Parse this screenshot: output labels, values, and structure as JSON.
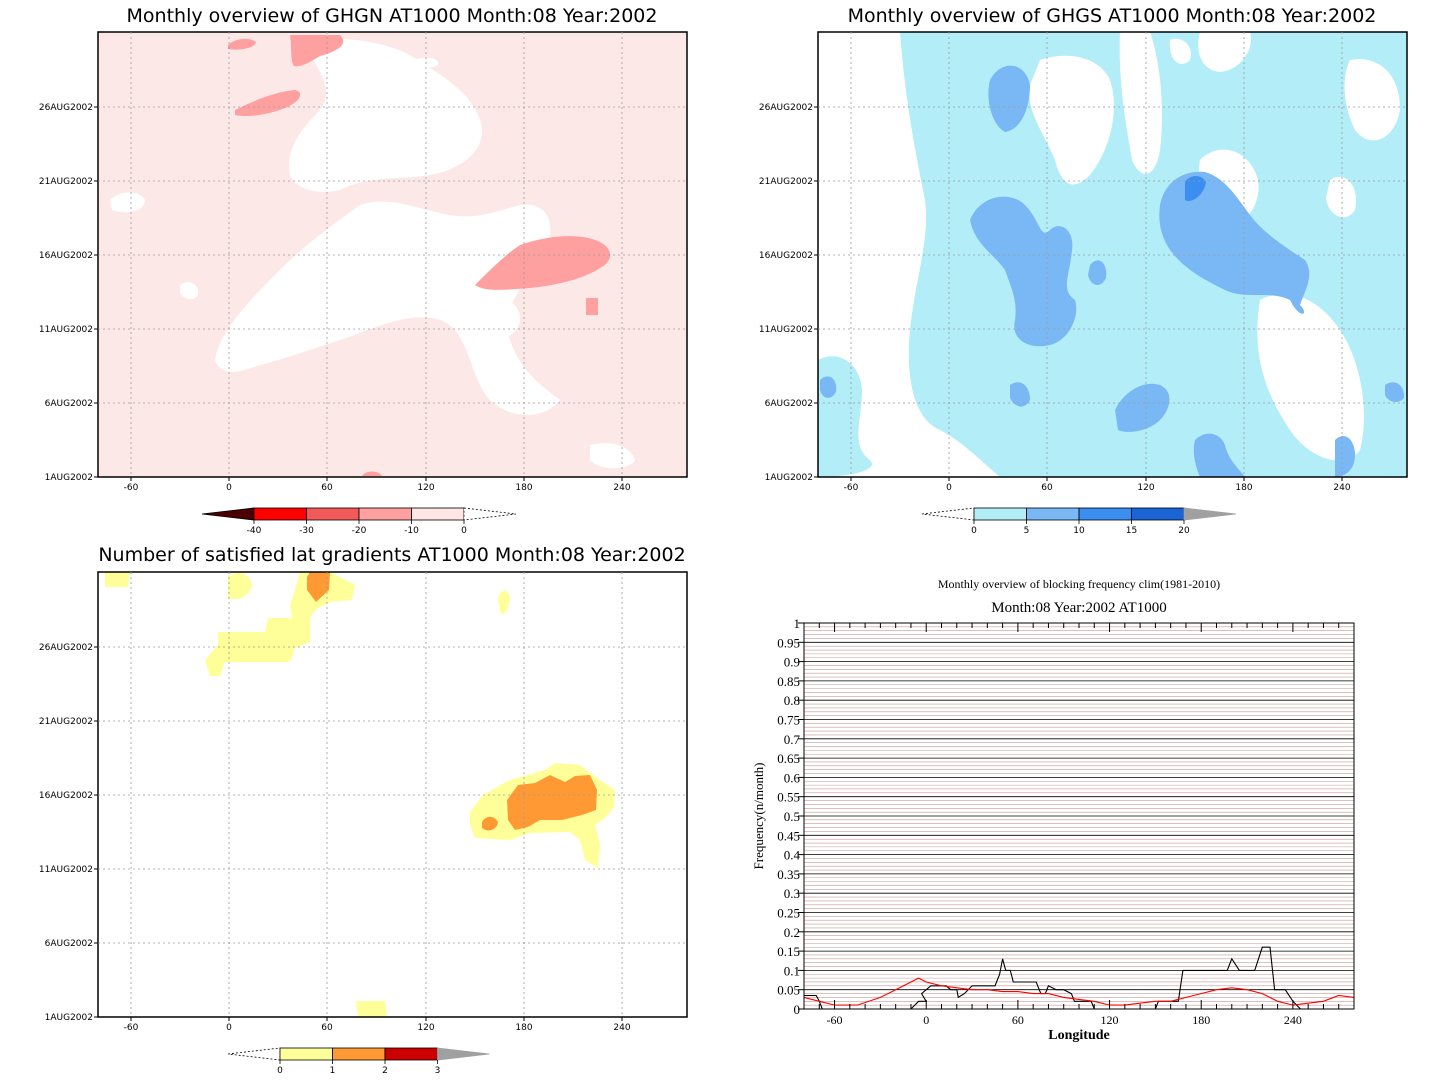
{
  "panels": {
    "ghgn": {
      "title": "Monthly overview of GHGN AT1000 Month:08 Year:2002",
      "x_ticks": [
        "-60",
        "0",
        "60",
        "120",
        "180",
        "240"
      ],
      "y_ticks": [
        "1AUG2002",
        "6AUG2002",
        "11AUG2002",
        "16AUG2002",
        "21AUG2002",
        "26AUG2002"
      ],
      "colorbar": {
        "labels": [
          "-40",
          "-30",
          "-20",
          "-10",
          "0"
        ],
        "colors": [
          "#4a0000",
          "#ff0000",
          "#f25a5a",
          "#ffa0a0",
          "#ffe6e6"
        ]
      },
      "colors": {
        "background": "#fde8e8",
        "light": "#ffffff",
        "strong": "#ffa0a0"
      }
    },
    "ghgs": {
      "title": "Monthly overview of GHGS AT1000 Month:08 Year:2002",
      "x_ticks": [
        "-60",
        "0",
        "60",
        "120",
        "180",
        "240"
      ],
      "y_ticks": [
        "1AUG2002",
        "6AUG2002",
        "11AUG2002",
        "16AUG2002",
        "21AUG2002",
        "26AUG2002"
      ],
      "colorbar": {
        "labels": [
          "0",
          "5",
          "10",
          "15",
          "20"
        ],
        "colors": [
          "#b3eef8",
          "#79b8f5",
          "#3a8ef0",
          "#1a64d8",
          "#a0a0a0"
        ]
      },
      "colors": {
        "background": "#ffffff",
        "level1": "#b3eef8",
        "level2": "#79b8f5",
        "level3": "#3a8ef0"
      }
    },
    "gradients": {
      "title": "Number of satisfied lat gradients AT1000 Month:08 Year:2002",
      "x_ticks": [
        "-60",
        "0",
        "60",
        "120",
        "180",
        "240"
      ],
      "y_ticks": [
        "1AUG2002",
        "6AUG2002",
        "11AUG2002",
        "16AUG2002",
        "21AUG2002",
        "26AUG2002"
      ],
      "colorbar": {
        "labels": [
          "0",
          "1",
          "2",
          "3"
        ],
        "colors": [
          "#ffff99",
          "#ff9933",
          "#cc0000",
          "#a0a0a0"
        ]
      },
      "colors": {
        "level1": "#ffff99",
        "level2": "#ff9933"
      }
    }
  },
  "chart_data": {
    "type": "line",
    "title": "Monthly overview of blocking frequency clim(1981-2010)",
    "subtitle": "Month:08 Year:2002  AT1000",
    "xlabel": "Longitude",
    "ylabel": "Frequency(n/month)",
    "xlim": [
      -80,
      280
    ],
    "ylim": [
      0,
      1
    ],
    "x_ticks": [
      "-60",
      "0",
      "60",
      "120",
      "180",
      "240"
    ],
    "y_ticks": [
      "0",
      "0.05",
      "0.1",
      "0.15",
      "0.2",
      "0.25",
      "0.3",
      "0.35",
      "0.4",
      "0.45",
      "0.5",
      "0.55",
      "0.6",
      "0.65",
      "0.7",
      "0.75",
      "0.8",
      "0.85",
      "0.9",
      "0.95",
      "1"
    ],
    "series": [
      {
        "color": "#000000",
        "points": [
          [
            -80,
            0.035
          ],
          [
            -75,
            0.035
          ],
          [
            -72,
            0.035
          ],
          [
            -70,
            0.02
          ],
          [
            -68,
            0.0
          ],
          [
            -10,
            0.0
          ],
          [
            -5,
            0.02
          ],
          [
            0,
            0.02
          ],
          [
            -3,
            0.04
          ],
          [
            3,
            0.06
          ],
          [
            8,
            0.06
          ],
          [
            13,
            0.06
          ],
          [
            16,
            0.05
          ],
          [
            20,
            0.05
          ],
          [
            21,
            0.03
          ],
          [
            25,
            0.04
          ],
          [
            30,
            0.06
          ],
          [
            35,
            0.06
          ],
          [
            40,
            0.06
          ],
          [
            45,
            0.06
          ],
          [
            48,
            0.09
          ],
          [
            50,
            0.13
          ],
          [
            52,
            0.1
          ],
          [
            55,
            0.1
          ],
          [
            57,
            0.07
          ],
          [
            72,
            0.07
          ],
          [
            75,
            0.04
          ],
          [
            78,
            0.04
          ],
          [
            80,
            0.06
          ],
          [
            85,
            0.05
          ],
          [
            90,
            0.05
          ],
          [
            95,
            0.04
          ],
          [
            97,
            0.02
          ],
          [
            108,
            0.02
          ],
          [
            110,
            0.0
          ],
          [
            150,
            0.0
          ],
          [
            152,
            0.02
          ],
          [
            165,
            0.02
          ],
          [
            168,
            0.1
          ],
          [
            197,
            0.1
          ],
          [
            200,
            0.13
          ],
          [
            205,
            0.1
          ],
          [
            215,
            0.1
          ],
          [
            220,
            0.16
          ],
          [
            225,
            0.16
          ],
          [
            228,
            0.05
          ],
          [
            235,
            0.05
          ],
          [
            240,
            0.02
          ],
          [
            245,
            0.0
          ],
          [
            280,
            0.0
          ]
        ]
      },
      {
        "color": "#ff0000",
        "points": [
          [
            -80,
            0.03
          ],
          [
            -70,
            0.02
          ],
          [
            -60,
            0.01
          ],
          [
            -45,
            0.01
          ],
          [
            -30,
            0.03
          ],
          [
            -20,
            0.05
          ],
          [
            -10,
            0.07
          ],
          [
            -5,
            0.08
          ],
          [
            0,
            0.07
          ],
          [
            10,
            0.06
          ],
          [
            20,
            0.055
          ],
          [
            30,
            0.05
          ],
          [
            40,
            0.05
          ],
          [
            50,
            0.045
          ],
          [
            60,
            0.045
          ],
          [
            70,
            0.04
          ],
          [
            80,
            0.04
          ],
          [
            90,
            0.03
          ],
          [
            100,
            0.025
          ],
          [
            110,
            0.02
          ],
          [
            120,
            0.01
          ],
          [
            130,
            0.01
          ],
          [
            140,
            0.015
          ],
          [
            150,
            0.02
          ],
          [
            160,
            0.02
          ],
          [
            170,
            0.03
          ],
          [
            180,
            0.04
          ],
          [
            190,
            0.05
          ],
          [
            200,
            0.055
          ],
          [
            210,
            0.05
          ],
          [
            220,
            0.04
          ],
          [
            230,
            0.02
          ],
          [
            240,
            0.01
          ],
          [
            250,
            0.015
          ],
          [
            260,
            0.02
          ],
          [
            270,
            0.035
          ],
          [
            280,
            0.03
          ]
        ]
      }
    ]
  }
}
